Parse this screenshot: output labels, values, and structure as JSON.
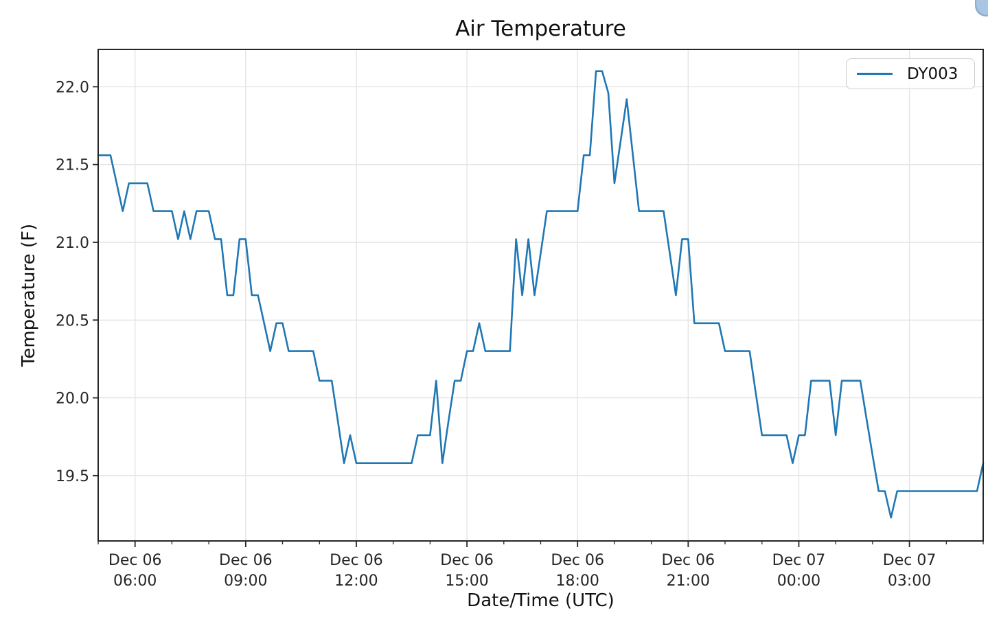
{
  "figure": {
    "background": "#ffffff"
  },
  "browser_corner_widget": {
    "color": "#a8c5e2"
  },
  "chart_data": {
    "type": "line",
    "title": "Air Temperature",
    "xlabel": "Date/Time (UTC)",
    "ylabel": "Temperature (F)",
    "grid": true,
    "grid_color": "#e4e4e4",
    "axis_color": "#262626",
    "line_width": 2.6,
    "ylim": [
      19.08,
      22.24
    ],
    "yticks": [
      19.5,
      20.0,
      20.5,
      21.0,
      21.5,
      22.0
    ],
    "xlim": [
      "Dec 06 05:00",
      "Dec 07 05:00"
    ],
    "xticks": [
      "Dec 06 06:00",
      "Dec 06 09:00",
      "Dec 06 12:00",
      "Dec 06 15:00",
      "Dec 06 18:00",
      "Dec 06 21:00",
      "Dec 07 00:00",
      "Dec 07 03:00"
    ],
    "x_minor_tick_minutes": 60,
    "legend": {
      "position": "upper right",
      "entries": [
        {
          "label": "DY003",
          "color": "#1f77b4"
        }
      ]
    },
    "series": [
      {
        "name": "DY003",
        "color": "#1f77b4",
        "sample_interval_minutes": 10,
        "points": [
          [
            "Dec 06 05:00",
            21.56
          ],
          [
            "Dec 06 05:10",
            21.56
          ],
          [
            "Dec 06 05:20",
            21.56
          ],
          [
            "Dec 06 05:30",
            21.38
          ],
          [
            "Dec 06 05:40",
            21.2
          ],
          [
            "Dec 06 05:50",
            21.38
          ],
          [
            "Dec 06 06:00",
            21.38
          ],
          [
            "Dec 06 06:10",
            21.38
          ],
          [
            "Dec 06 06:20",
            21.38
          ],
          [
            "Dec 06 06:30",
            21.2
          ],
          [
            "Dec 06 06:40",
            21.2
          ],
          [
            "Dec 06 06:50",
            21.2
          ],
          [
            "Dec 06 07:00",
            21.2
          ],
          [
            "Dec 06 07:10",
            21.02
          ],
          [
            "Dec 06 07:20",
            21.2
          ],
          [
            "Dec 06 07:30",
            21.02
          ],
          [
            "Dec 06 07:40",
            21.2
          ],
          [
            "Dec 06 07:50",
            21.2
          ],
          [
            "Dec 06 08:00",
            21.2
          ],
          [
            "Dec 06 08:10",
            21.02
          ],
          [
            "Dec 06 08:20",
            21.02
          ],
          [
            "Dec 06 08:30",
            20.66
          ],
          [
            "Dec 06 08:40",
            20.66
          ],
          [
            "Dec 06 08:50",
            21.02
          ],
          [
            "Dec 06 09:00",
            21.02
          ],
          [
            "Dec 06 09:10",
            20.66
          ],
          [
            "Dec 06 09:20",
            20.66
          ],
          [
            "Dec 06 09:30",
            20.48
          ],
          [
            "Dec 06 09:40",
            20.3
          ],
          [
            "Dec 06 09:50",
            20.48
          ],
          [
            "Dec 06 10:00",
            20.48
          ],
          [
            "Dec 06 10:10",
            20.3
          ],
          [
            "Dec 06 10:20",
            20.3
          ],
          [
            "Dec 06 10:30",
            20.3
          ],
          [
            "Dec 06 10:40",
            20.3
          ],
          [
            "Dec 06 10:50",
            20.3
          ],
          [
            "Dec 06 11:00",
            20.11
          ],
          [
            "Dec 06 11:10",
            20.11
          ],
          [
            "Dec 06 11:20",
            20.11
          ],
          [
            "Dec 06 11:30",
            19.85
          ],
          [
            "Dec 06 11:40",
            19.58
          ],
          [
            "Dec 06 11:50",
            19.76
          ],
          [
            "Dec 06 12:00",
            19.58
          ],
          [
            "Dec 06 12:10",
            19.58
          ],
          [
            "Dec 06 12:20",
            19.58
          ],
          [
            "Dec 06 12:30",
            19.58
          ],
          [
            "Dec 06 12:40",
            19.58
          ],
          [
            "Dec 06 12:50",
            19.58
          ],
          [
            "Dec 06 13:00",
            19.58
          ],
          [
            "Dec 06 13:10",
            19.58
          ],
          [
            "Dec 06 13:20",
            19.58
          ],
          [
            "Dec 06 13:30",
            19.58
          ],
          [
            "Dec 06 13:40",
            19.76
          ],
          [
            "Dec 06 13:50",
            19.76
          ],
          [
            "Dec 06 14:00",
            19.76
          ],
          [
            "Dec 06 14:10",
            20.11
          ],
          [
            "Dec 06 14:20",
            19.58
          ],
          [
            "Dec 06 14:30",
            19.85
          ],
          [
            "Dec 06 14:40",
            20.11
          ],
          [
            "Dec 06 14:50",
            20.11
          ],
          [
            "Dec 06 15:00",
            20.3
          ],
          [
            "Dec 06 15:10",
            20.3
          ],
          [
            "Dec 06 15:20",
            20.48
          ],
          [
            "Dec 06 15:30",
            20.3
          ],
          [
            "Dec 06 15:40",
            20.3
          ],
          [
            "Dec 06 15:50",
            20.3
          ],
          [
            "Dec 06 16:00",
            20.3
          ],
          [
            "Dec 06 16:10",
            20.3
          ],
          [
            "Dec 06 16:20",
            21.02
          ],
          [
            "Dec 06 16:30",
            20.66
          ],
          [
            "Dec 06 16:40",
            21.02
          ],
          [
            "Dec 06 16:50",
            20.66
          ],
          [
            "Dec 06 17:00",
            20.93
          ],
          [
            "Dec 06 17:10",
            21.2
          ],
          [
            "Dec 06 17:20",
            21.2
          ],
          [
            "Dec 06 17:30",
            21.2
          ],
          [
            "Dec 06 17:40",
            21.2
          ],
          [
            "Dec 06 17:50",
            21.2
          ],
          [
            "Dec 06 18:00",
            21.2
          ],
          [
            "Dec 06 18:10",
            21.56
          ],
          [
            "Dec 06 18:20",
            21.56
          ],
          [
            "Dec 06 18:30",
            22.1
          ],
          [
            "Dec 06 18:40",
            22.1
          ],
          [
            "Dec 06 18:50",
            21.96
          ],
          [
            "Dec 06 19:00",
            21.38
          ],
          [
            "Dec 06 19:10",
            21.65
          ],
          [
            "Dec 06 19:20",
            21.92
          ],
          [
            "Dec 06 19:30",
            21.56
          ],
          [
            "Dec 06 19:40",
            21.2
          ],
          [
            "Dec 06 19:50",
            21.2
          ],
          [
            "Dec 06 20:00",
            21.2
          ],
          [
            "Dec 06 20:10",
            21.2
          ],
          [
            "Dec 06 20:20",
            21.2
          ],
          [
            "Dec 06 20:30",
            20.93
          ],
          [
            "Dec 06 20:40",
            20.66
          ],
          [
            "Dec 06 20:50",
            21.02
          ],
          [
            "Dec 06 21:00",
            21.02
          ],
          [
            "Dec 06 21:10",
            20.48
          ],
          [
            "Dec 06 21:20",
            20.48
          ],
          [
            "Dec 06 21:30",
            20.48
          ],
          [
            "Dec 06 21:40",
            20.48
          ],
          [
            "Dec 06 21:50",
            20.48
          ],
          [
            "Dec 06 22:00",
            20.3
          ],
          [
            "Dec 06 22:10",
            20.3
          ],
          [
            "Dec 06 22:20",
            20.3
          ],
          [
            "Dec 06 22:30",
            20.3
          ],
          [
            "Dec 06 22:40",
            20.3
          ],
          [
            "Dec 06 22:50",
            20.03
          ],
          [
            "Dec 06 23:00",
            19.76
          ],
          [
            "Dec 06 23:10",
            19.76
          ],
          [
            "Dec 06 23:20",
            19.76
          ],
          [
            "Dec 06 23:30",
            19.76
          ],
          [
            "Dec 06 23:40",
            19.76
          ],
          [
            "Dec 06 23:50",
            19.58
          ],
          [
            "Dec 07 00:00",
            19.76
          ],
          [
            "Dec 07 00:10",
            19.76
          ],
          [
            "Dec 07 00:20",
            20.11
          ],
          [
            "Dec 07 00:30",
            20.11
          ],
          [
            "Dec 07 00:40",
            20.11
          ],
          [
            "Dec 07 00:50",
            20.11
          ],
          [
            "Dec 07 01:00",
            19.76
          ],
          [
            "Dec 07 01:10",
            20.11
          ],
          [
            "Dec 07 01:20",
            20.11
          ],
          [
            "Dec 07 01:30",
            20.11
          ],
          [
            "Dec 07 01:40",
            20.11
          ],
          [
            "Dec 07 01:50",
            19.87
          ],
          [
            "Dec 07 02:00",
            19.63
          ],
          [
            "Dec 07 02:10",
            19.4
          ],
          [
            "Dec 07 02:20",
            19.4
          ],
          [
            "Dec 07 02:30",
            19.23
          ],
          [
            "Dec 07 02:40",
            19.4
          ],
          [
            "Dec 07 02:50",
            19.4
          ],
          [
            "Dec 07 03:00",
            19.4
          ],
          [
            "Dec 07 03:10",
            19.4
          ],
          [
            "Dec 07 03:20",
            19.4
          ],
          [
            "Dec 07 03:30",
            19.4
          ],
          [
            "Dec 07 03:40",
            19.4
          ],
          [
            "Dec 07 03:50",
            19.4
          ],
          [
            "Dec 07 04:00",
            19.4
          ],
          [
            "Dec 07 04:10",
            19.4
          ],
          [
            "Dec 07 04:20",
            19.4
          ],
          [
            "Dec 07 04:30",
            19.4
          ],
          [
            "Dec 07 04:40",
            19.4
          ],
          [
            "Dec 07 04:50",
            19.4
          ],
          [
            "Dec 07 05:00",
            19.58
          ]
        ]
      }
    ]
  }
}
